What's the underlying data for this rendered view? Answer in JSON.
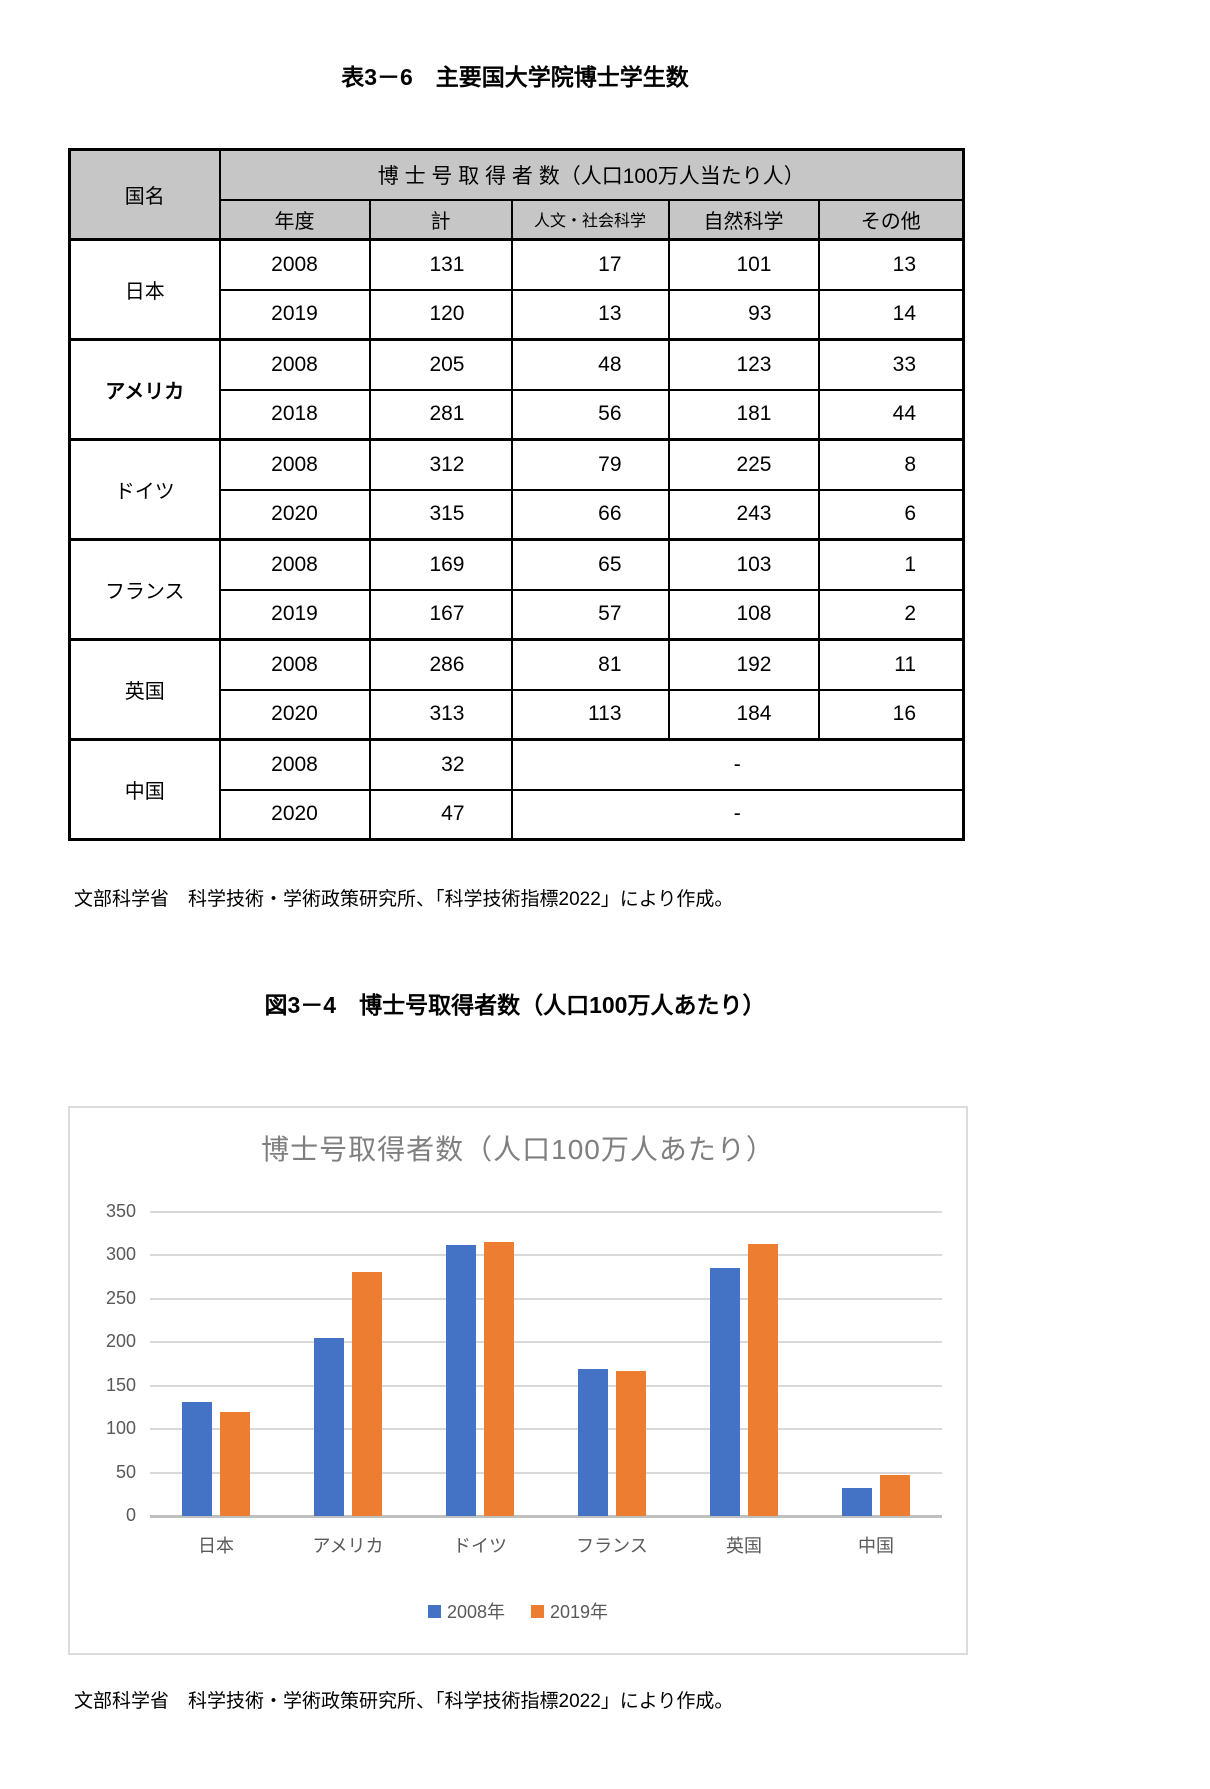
{
  "page": {
    "table_title": "表3－6　主要国大学院博士学生数",
    "figure_title": "図3－4　博士号取得者数（人口100万人あたり）",
    "table_source_note": "文部科学省　科学技術・学術政策研究所、「科学技術指標2022」により作成。",
    "figure_source_note": "文部科学省　科学技術・学術政策研究所、「科学技術指標2022」により作成。"
  },
  "table": {
    "corner_header": "国名",
    "group_header": "博 士 号 取 得 者 数（人口100万人当たり人）",
    "sub_headers": [
      "年度",
      "計",
      "人文・社会科学",
      "自然科学",
      "その他"
    ],
    "countries": [
      {
        "name": "日本",
        "rows": [
          [
            "2008",
            "131",
            "17",
            "101",
            "13"
          ],
          [
            "2019",
            "120",
            "13",
            "93",
            "14"
          ]
        ]
      },
      {
        "name": "アメリカ",
        "rows": [
          [
            "2008",
            "205",
            "48",
            "123",
            "33"
          ],
          [
            "2018",
            "281",
            "56",
            "181",
            "44"
          ]
        ]
      },
      {
        "name": "ドイツ",
        "rows": [
          [
            "2008",
            "312",
            "79",
            "225",
            "8"
          ],
          [
            "2020",
            "315",
            "66",
            "243",
            "6"
          ]
        ]
      },
      {
        "name": "フランス",
        "rows": [
          [
            "2008",
            "169",
            "65",
            "103",
            "1"
          ],
          [
            "2019",
            "167",
            "57",
            "108",
            "2"
          ]
        ]
      },
      {
        "name": "英国",
        "rows": [
          [
            "2008",
            "286",
            "81",
            "192",
            "11"
          ],
          [
            "2020",
            "313",
            "113",
            "184",
            "16"
          ]
        ]
      },
      {
        "name": "中国",
        "rows": [
          [
            "2008",
            "32",
            "-"
          ],
          [
            "2020",
            "47",
            "-"
          ]
        ]
      }
    ]
  },
  "chart_data": {
    "type": "bar",
    "title": "博士号取得者数（人口100万人あたり）",
    "categories": [
      "日本",
      "アメリカ",
      "ドイツ",
      "フランス",
      "英国",
      "中国"
    ],
    "series": [
      {
        "name": "2008年",
        "color": "#4472C4",
        "values": [
          131,
          205,
          312,
          169,
          286,
          32
        ]
      },
      {
        "name": "2019年",
        "color": "#ED7D31",
        "values": [
          120,
          281,
          315,
          167,
          313,
          47
        ]
      }
    ],
    "xlabel": "",
    "ylabel": "",
    "ylim": [
      0,
      350
    ],
    "ytick_interval": 50,
    "yticks": [
      350,
      300,
      250,
      200,
      150,
      100,
      50,
      0
    ],
    "grid": true,
    "legend_position": "bottom",
    "title_color": "#7f7f7f",
    "axis_text_color": "#595959",
    "gridline_color": "#d9d9d9",
    "baseline_color": "#bfbfbf"
  },
  "colors": {
    "header_bg": "#c6c6c6",
    "series_2008": "#4472C4",
    "series_2019": "#ED7D31"
  }
}
